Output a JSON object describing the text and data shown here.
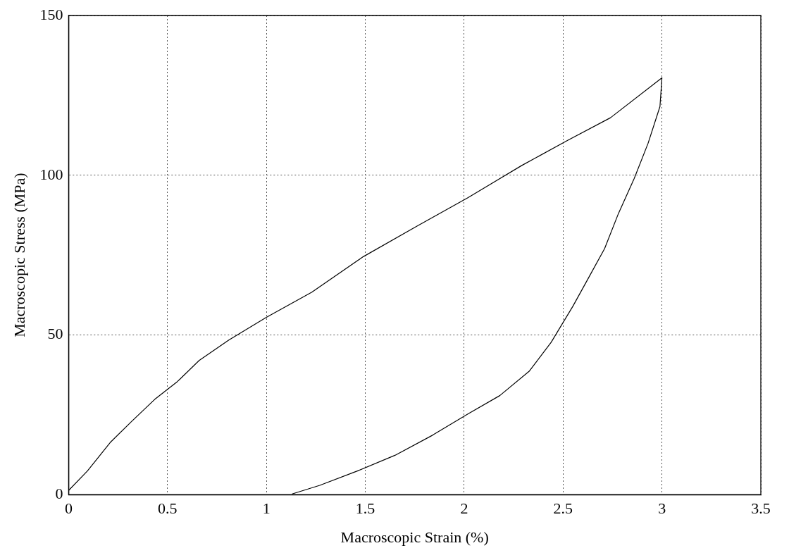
{
  "chart_data": {
    "type": "line",
    "xlabel": "Macroscopic Strain (%)",
    "ylabel": "Macroscopic Stress (MPa)",
    "x": [
      0,
      0.095,
      0.21,
      0.32,
      0.435,
      0.55,
      0.66,
      0.81,
      1.0,
      1.23,
      1.49,
      1.76,
      2.02,
      2.29,
      2.52,
      2.74,
      3.0,
      2.99,
      2.93,
      2.86,
      2.78,
      2.71,
      2.63,
      2.55,
      2.44,
      2.33,
      2.18,
      2.02,
      1.84,
      1.65,
      1.46,
      1.27,
      1.13
    ],
    "series": [
      {
        "color": "#000000",
        "values": [
          1.3,
          7.4,
          16.3,
          23,
          29.8,
          35.4,
          42,
          48.4,
          55.5,
          63.4,
          74.5,
          84,
          93,
          103,
          110.8,
          118,
          130.5,
          121.5,
          110,
          99,
          88,
          77,
          68,
          59,
          47.7,
          38.7,
          31,
          25.3,
          18.6,
          12.3,
          7.4,
          2.9,
          0.2
        ]
      }
    ],
    "xlim": [
      0,
      3.5
    ],
    "xticks": [
      0,
      0.5,
      1,
      1.5,
      2,
      2.5,
      3,
      3.5
    ],
    "ylim": [
      0,
      150
    ],
    "yticks": [
      0,
      50,
      100,
      150
    ],
    "grid": true,
    "legend": false,
    "marker": "none",
    "line_style": "solid"
  }
}
